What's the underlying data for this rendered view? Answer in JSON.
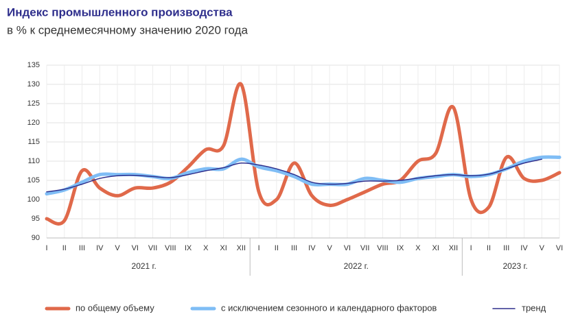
{
  "chart_data": {
    "type": "line",
    "title": "Индекс промышленного производства",
    "subtitle": "в % к среднемесячному значению 2020 года",
    "categories": [
      "I",
      "II",
      "III",
      "IV",
      "V",
      "VI",
      "VII",
      "VIII",
      "IX",
      "X",
      "XI",
      "XII",
      "I",
      "II",
      "III",
      "IV",
      "V",
      "VI",
      "VII",
      "VIII",
      "IX",
      "X",
      "XI",
      "XII",
      "I",
      "II",
      "III",
      "IV",
      "V",
      "VI"
    ],
    "years": [
      "2021 г.",
      "2022 г.",
      "2023 г."
    ],
    "ylim": [
      90,
      135
    ],
    "yticks": [
      90,
      95,
      100,
      105,
      110,
      115,
      120,
      125,
      130,
      135
    ],
    "grid": true,
    "series": [
      {
        "name": "по общему объему",
        "color": "#e0694a",
        "values": [
          95,
          94.5,
          107.5,
          103,
          101,
          103,
          103,
          104.5,
          108.5,
          113,
          114,
          130,
          102,
          100,
          109.5,
          101,
          98.5,
          100,
          102,
          104,
          105,
          110,
          112,
          124,
          100,
          98,
          111,
          105.5,
          105,
          107
        ]
      },
      {
        "name": "с исключением сезонного и календарного факторов",
        "color": "#7fbdf5",
        "values": [
          101.5,
          102.5,
          104.5,
          106.5,
          106.5,
          106.5,
          106,
          105.5,
          107,
          108,
          108,
          110.5,
          108.5,
          107.5,
          106,
          104,
          104,
          104,
          105.5,
          105,
          104.5,
          105.5,
          106,
          106.5,
          106,
          106.5,
          108,
          110,
          111,
          111
        ]
      },
      {
        "name": "тренд",
        "color": "#2e2e8c",
        "values": [
          102,
          102.7,
          104,
          105.5,
          106.2,
          106.3,
          106,
          105.7,
          106.5,
          107.5,
          108.3,
          109.5,
          109,
          108,
          106.5,
          104.5,
          104,
          104.2,
          104.8,
          104.8,
          105,
          105.6,
          106.2,
          106.5,
          106.2,
          106.6,
          108,
          109.5,
          110.5,
          null
        ]
      }
    ]
  }
}
